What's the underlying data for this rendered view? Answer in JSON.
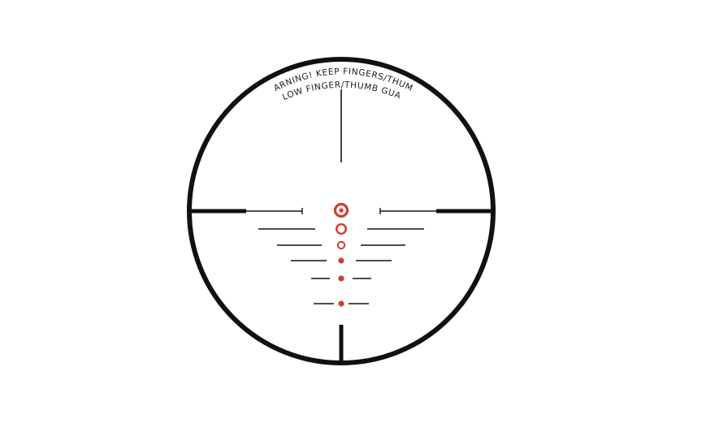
{
  "reticle": {
    "warning_line_1": "WARNING! KEEP FINGERS/THUMB",
    "warning_line_2": "BELOW FINGER/THUMB GUARD",
    "colors": {
      "reticle_black": "#111111",
      "aim_red": "#d63a2c",
      "background": "#ffffff"
    }
  }
}
